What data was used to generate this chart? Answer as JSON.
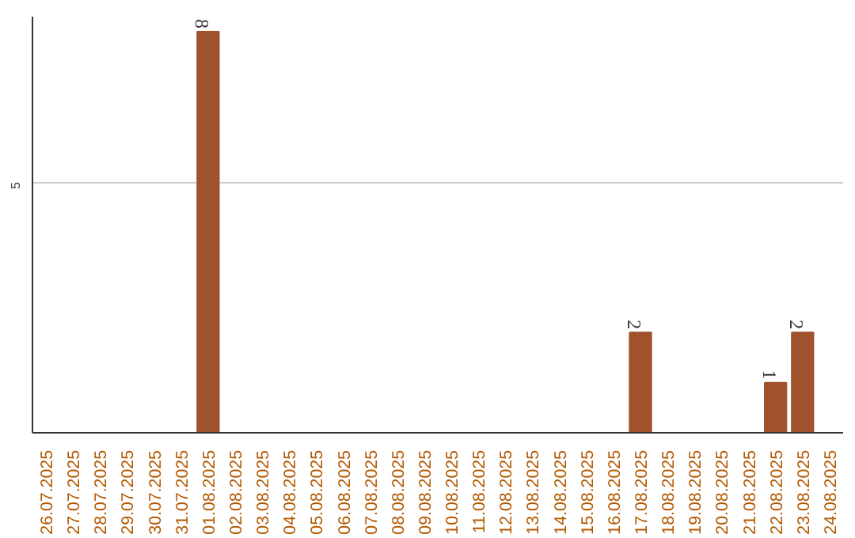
{
  "chart_data": {
    "type": "bar",
    "categories": [
      "26.07.2025",
      "27.07.2025",
      "28.07.2025",
      "29.07.2025",
      "30.07.2025",
      "31.07.2025",
      "01.08.2025",
      "02.08.2025",
      "03.08.2025",
      "04.08.2025",
      "05.08.2025",
      "06.08.2025",
      "07.08.2025",
      "08.08.2025",
      "09.08.2025",
      "10.08.2025",
      "11.08.2025",
      "12.08.2025",
      "13.08.2025",
      "14.08.2025",
      "15.08.2025",
      "16.08.2025",
      "17.08.2025",
      "18.08.2025",
      "19.08.2025",
      "20.08.2025",
      "21.08.2025",
      "22.08.2025",
      "23.08.2025",
      "24.08.2025"
    ],
    "values": [
      0,
      0,
      0,
      0,
      0,
      0,
      8,
      0,
      0,
      0,
      0,
      0,
      0,
      0,
      0,
      0,
      0,
      0,
      0,
      0,
      0,
      0,
      2,
      0,
      0,
      0,
      0,
      1,
      2,
      0
    ],
    "value_labels": [
      null,
      null,
      null,
      null,
      null,
      null,
      "8",
      null,
      null,
      null,
      null,
      null,
      null,
      null,
      null,
      null,
      null,
      null,
      null,
      null,
      null,
      null,
      "2",
      null,
      null,
      null,
      null,
      "1",
      "2",
      null
    ],
    "color": "#a0522d",
    "ylim": [
      0,
      8.3
    ],
    "yticks": [
      5
    ],
    "grid": "y"
  }
}
